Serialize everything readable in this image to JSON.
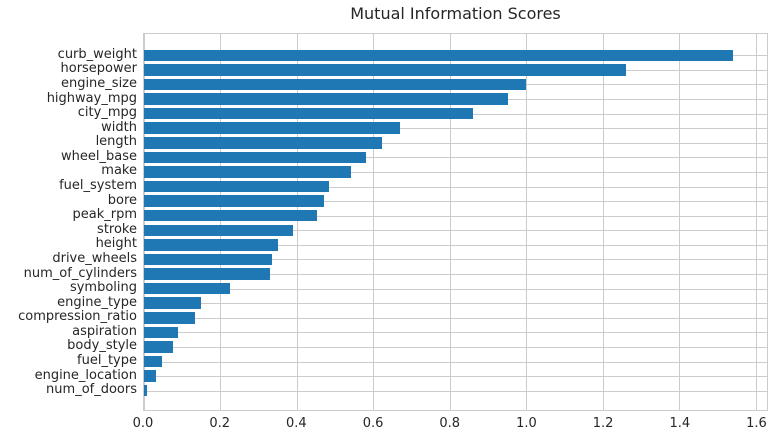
{
  "title": "Mutual Information Scores",
  "colors": {
    "bar": "#1f77b4",
    "grid": "#cccccc",
    "text": "#262626",
    "background": "#ffffff"
  },
  "chart_data": {
    "type": "bar",
    "orientation": "horizontal",
    "title": "Mutual Information Scores",
    "categories": [
      "curb_weight",
      "horsepower",
      "engine_size",
      "highway_mpg",
      "city_mpg",
      "width",
      "length",
      "wheel_base",
      "make",
      "fuel_system",
      "bore",
      "peak_rpm",
      "stroke",
      "height",
      "drive_wheels",
      "num_of_cylinders",
      "symboling",
      "engine_type",
      "compression_ratio",
      "aspiration",
      "body_style",
      "fuel_type",
      "engine_location",
      "num_of_doors"
    ],
    "values": [
      1.54,
      1.26,
      1.0,
      0.952,
      0.86,
      0.67,
      0.622,
      0.581,
      0.541,
      0.485,
      0.471,
      0.452,
      0.389,
      0.35,
      0.335,
      0.33,
      0.225,
      0.149,
      0.133,
      0.088,
      0.075,
      0.048,
      0.032,
      0.009
    ],
    "xlabel": "",
    "ylabel": "",
    "xticks": [
      0.0,
      0.2,
      0.4,
      0.6,
      0.8,
      1.0,
      1.2,
      1.4,
      1.6
    ],
    "xtick_labels": [
      "0.0",
      "0.2",
      "0.4",
      "0.6",
      "0.8",
      "1.0",
      "1.2",
      "1.4",
      "1.6"
    ],
    "xlim": [
      0,
      1.63
    ],
    "grid": true,
    "legend": false,
    "bar_color": "#1f77b4"
  }
}
